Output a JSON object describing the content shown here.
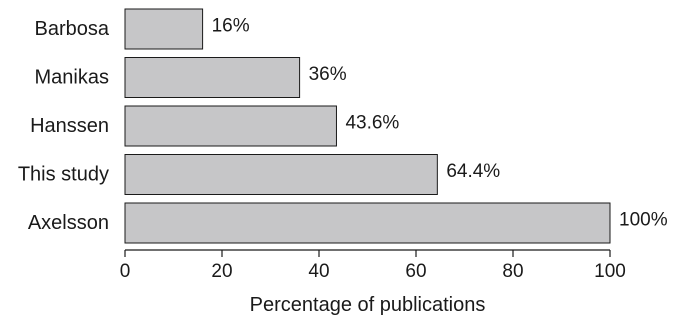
{
  "chart_data": {
    "type": "bar",
    "orientation": "horizontal",
    "categories": [
      "Barbosa",
      "Manikas",
      "Hanssen",
      "This study",
      "Axelsson"
    ],
    "values": [
      16,
      36,
      43.6,
      64.4,
      100
    ],
    "value_labels": [
      "16%",
      "36%",
      "43.6%",
      "64.4%",
      "100%"
    ],
    "xlabel": "Percentage of publications",
    "ylabel": "",
    "xlim": [
      0,
      100
    ],
    "xticks": [
      0,
      20,
      40,
      60,
      80,
      100
    ],
    "grid": false,
    "bar_color": "#c6c6c8",
    "bar_edge_color": "#1a1a1a"
  }
}
